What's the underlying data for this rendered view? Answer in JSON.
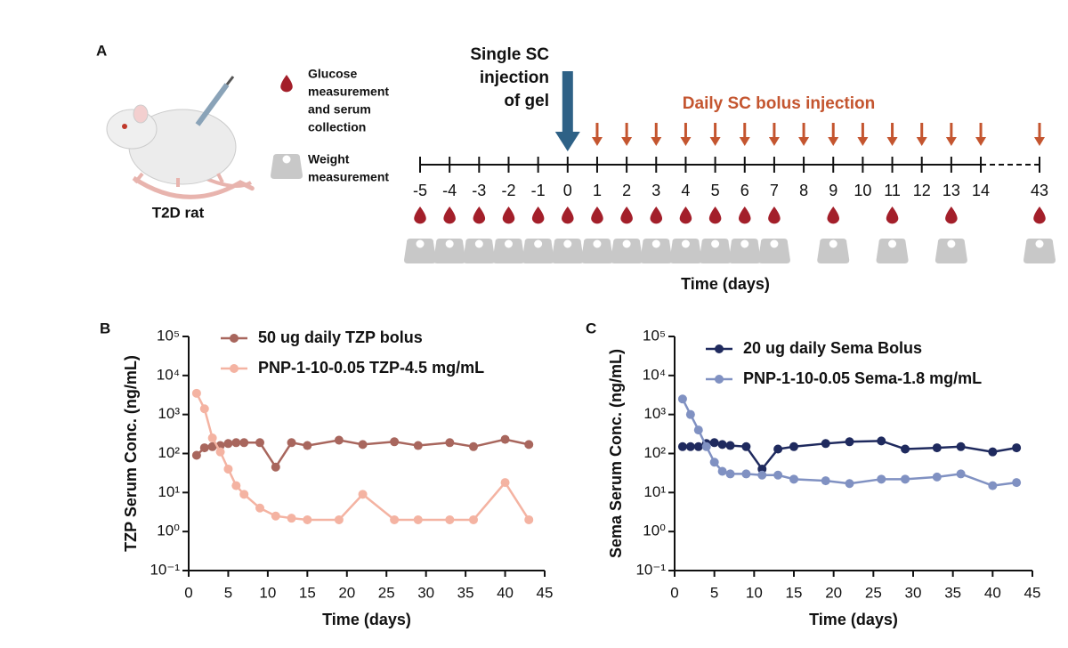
{
  "panel_a": {
    "panel": "A",
    "subject": "T2D rat",
    "legend": [
      {
        "lines": [
          "Glucose",
          "measurement",
          "and serum",
          "collection"
        ]
      },
      {
        "lines": [
          "Weight",
          "measurement"
        ]
      }
    ],
    "gel_injection": [
      "Single SC",
      "injection",
      "of gel"
    ],
    "bolus_label": "Daily SC bolus injection",
    "days": [
      -5,
      -4,
      -3,
      -2,
      -1,
      0,
      1,
      2,
      3,
      4,
      5,
      6,
      7,
      8,
      9,
      10,
      11,
      12,
      13,
      14,
      43
    ],
    "x_label": "Time (days)"
  },
  "chart_data": [
    {
      "type": "line",
      "panel": "B",
      "x_label": "Time (days)",
      "y_label": "TZP Serum Conc. (ng/mL)",
      "yscale": "log",
      "xlim": [
        0,
        45
      ],
      "xticks": [
        0,
        5,
        10,
        15,
        20,
        25,
        30,
        35,
        40,
        45
      ],
      "ylim": [
        0.1,
        100000
      ],
      "yticks": [
        {
          "value": 0.1,
          "label": "10⁻¹"
        },
        {
          "value": 1,
          "label": "10⁰"
        },
        {
          "value": 10,
          "label": "10¹"
        },
        {
          "value": 100,
          "label": "10²"
        },
        {
          "value": 1000,
          "label": "10³"
        },
        {
          "value": 10000,
          "label": "10⁴"
        },
        {
          "value": 100000,
          "label": "10⁵"
        }
      ],
      "series": [
        {
          "name": "50 ug daily TZP bolus",
          "color": "#a8665d",
          "x": [
            1,
            2,
            3,
            4,
            5,
            6,
            7,
            9,
            11,
            13,
            15,
            19,
            22,
            26,
            29,
            33,
            36,
            40,
            43
          ],
          "values": [
            90,
            140,
            150,
            160,
            180,
            190,
            190,
            190,
            45,
            190,
            160,
            220,
            170,
            200,
            160,
            190,
            150,
            230,
            170
          ]
        },
        {
          "name": "PNP-1-10-0.05 TZP-4.5 mg/mL",
          "color": "#f4b3a2",
          "x": [
            1,
            2,
            3,
            4,
            5,
            6,
            7,
            9,
            11,
            13,
            15,
            19,
            22,
            26,
            29,
            33,
            36,
            40,
            43
          ],
          "values": [
            3500,
            1400,
            250,
            110,
            40,
            15,
            9,
            4,
            2.5,
            2.2,
            2,
            2,
            9,
            2,
            2,
            2,
            2,
            18,
            2
          ]
        }
      ]
    },
    {
      "type": "line",
      "panel": "C",
      "x_label": "Time (days)",
      "y_label": "Sema Serum Conc. (ng/mL)",
      "yscale": "log",
      "xlim": [
        0,
        45
      ],
      "xticks": [
        0,
        5,
        10,
        15,
        20,
        25,
        30,
        35,
        40,
        45
      ],
      "ylim": [
        0.1,
        100000
      ],
      "yticks": [
        {
          "value": 0.1,
          "label": "10⁻¹"
        },
        {
          "value": 1,
          "label": "10⁰"
        },
        {
          "value": 10,
          "label": "10¹"
        },
        {
          "value": 100,
          "label": "10²"
        },
        {
          "value": 1000,
          "label": "10³"
        },
        {
          "value": 10000,
          "label": "10⁴"
        },
        {
          "value": 100000,
          "label": "10⁵"
        }
      ],
      "series": [
        {
          "name": "20 ug daily Sema Bolus",
          "color": "#1f2a5e",
          "x": [
            1,
            2,
            3,
            4,
            5,
            6,
            7,
            9,
            11,
            13,
            15,
            19,
            22,
            26,
            29,
            33,
            36,
            40,
            43
          ],
          "values": [
            150,
            150,
            150,
            180,
            190,
            170,
            160,
            150,
            40,
            130,
            150,
            180,
            200,
            210,
            130,
            140,
            150,
            110,
            140
          ]
        },
        {
          "name": "PNP-1-10-0.05 Sema-1.8 mg/mL",
          "color": "#8091c2",
          "x": [
            1,
            2,
            3,
            4,
            5,
            6,
            7,
            9,
            11,
            13,
            15,
            19,
            22,
            26,
            29,
            33,
            36,
            40,
            43
          ],
          "values": [
            2500,
            1000,
            400,
            150,
            60,
            35,
            30,
            30,
            28,
            28,
            22,
            20,
            17,
            22,
            22,
            25,
            30,
            15,
            18
          ]
        }
      ]
    }
  ]
}
